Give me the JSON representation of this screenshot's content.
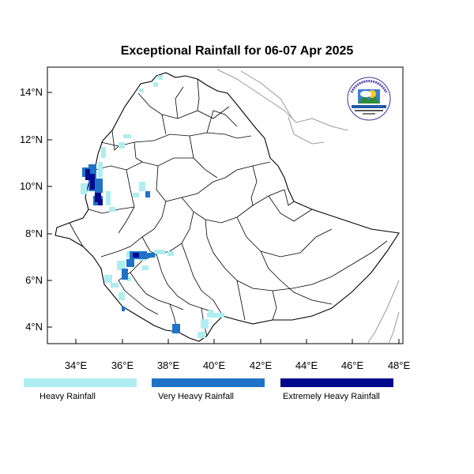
{
  "title": "Exceptional Rainfall for 06-07 Apr 2025",
  "axes": {
    "x_ticks": [
      "34°E",
      "36°E",
      "38°E",
      "40°E",
      "42°E",
      "44°E",
      "46°E",
      "48°E"
    ],
    "y_ticks": [
      "14°N",
      "12°N",
      "10°N",
      "8°N",
      "6°N",
      "4°N"
    ]
  },
  "legend": [
    {
      "label": "Heavy Rainfall",
      "color": "#aeeef0"
    },
    {
      "label": "Very Heavy Rainfall",
      "color": "#1e73c8"
    },
    {
      "label": "Extremely Heavy Rainfall",
      "color": "#000a8c"
    }
  ],
  "logo": {
    "icon": "meteorology-institute-logo"
  },
  "colors": {
    "heavy": "#aeeef0",
    "very_heavy": "#1e73c8",
    "extreme": "#000a8c",
    "border": "#000000",
    "neighbor_border": "#9a9a9a"
  }
}
